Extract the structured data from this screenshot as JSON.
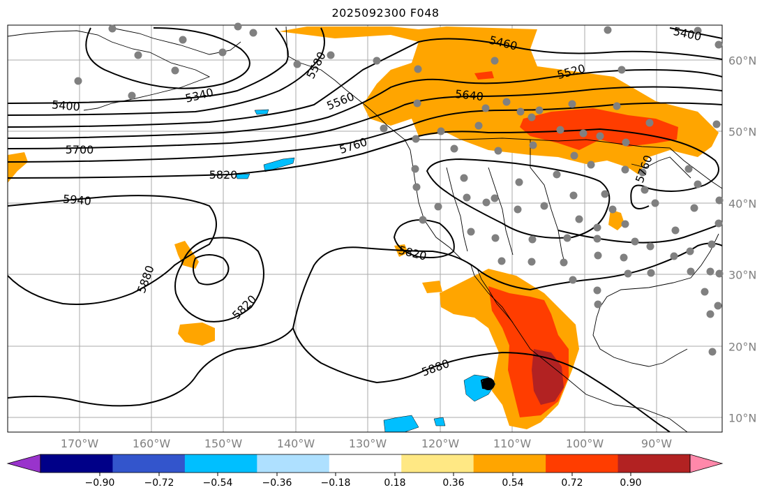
{
  "title": "2025092300 F048",
  "map": {
    "extent": {
      "lon_min": -180,
      "lon_max": -81,
      "lat_min": 8,
      "lat_max": 65
    },
    "lon_labels": [
      "170°W",
      "160°W",
      "150°W",
      "140°W",
      "130°W",
      "120°W",
      "110°W",
      "100°W",
      "90°W"
    ],
    "lat_labels": [
      "60°N",
      "50°N",
      "40°N",
      "30°N",
      "20°N",
      "10°N"
    ],
    "contour_labels": [
      "5460",
      "5400",
      "5400",
      "5520",
      "5340",
      "5580",
      "5640",
      "5560",
      "5700",
      "5760",
      "5820",
      "5940",
      "5760",
      "5820",
      "5880",
      "5820",
      "5880"
    ],
    "station_marker_color": "#808080",
    "contour_color": "#000000"
  },
  "colorbar": {
    "colors": [
      "#9933cc",
      "#000088",
      "#3355cc",
      "#00bfff",
      "#aee0ff",
      "#ffffff",
      "#ffe884",
      "#ffa500",
      "#ff3d00",
      "#b22222",
      "#ff88aa"
    ],
    "tick_labels": [
      "−0.90",
      "−0.72",
      "−0.54",
      "−0.36",
      "−0.18",
      "0.18",
      "0.36",
      "0.54",
      "0.72",
      "0.90"
    ]
  }
}
